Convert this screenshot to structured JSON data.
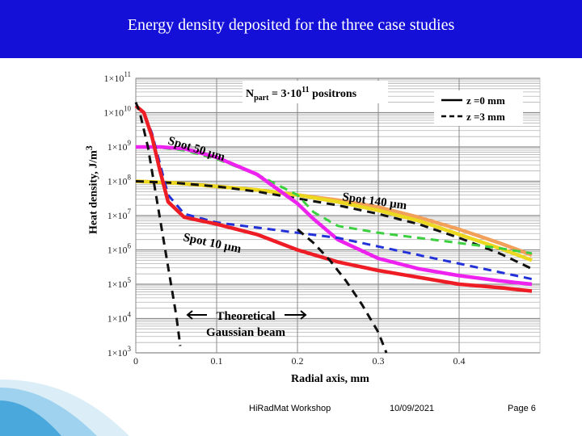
{
  "header": {
    "title": "Energy density deposited for the three case studies"
  },
  "footer": {
    "workshop": "HiRadMat  Workshop",
    "date": "10/09/2021",
    "page": "Page 6"
  },
  "colors": {
    "banner": "#1410d8",
    "orange": "#f2a05a",
    "yellow": "#ecd81e",
    "green": "#3cd040",
    "blue": "#2232d8",
    "magenta": "#ee22ee",
    "red": "#ee1c24",
    "black": "#111111"
  },
  "chart_data": {
    "type": "line",
    "xlabel": "Radial axis, mm",
    "ylabel": "Heat density,  J/m3",
    "ylabel_main": "Heat density,  J/m",
    "ylabel_sup": "3",
    "xlim": [
      0,
      0.5
    ],
    "ylim_log10": [
      3,
      11
    ],
    "log_y": true,
    "x_ticks": [
      "0",
      "0.1",
      "0.2",
      "0.3",
      "0.4"
    ],
    "x_tick_values": [
      0,
      0.1,
      0.2,
      0.3,
      0.4
    ],
    "y_ticks": [
      {
        "base": "1×10",
        "exp": "11",
        "v": 11
      },
      {
        "base": "1×10",
        "exp": "10",
        "v": 10
      },
      {
        "base": "1×10",
        "exp": "9",
        "v": 9
      },
      {
        "base": "1×10",
        "exp": "8",
        "v": 8
      },
      {
        "base": "1×10",
        "exp": "7",
        "v": 7
      },
      {
        "base": "1×10",
        "exp": "6",
        "v": 6
      },
      {
        "base": "1×10",
        "exp": "5",
        "v": 5
      },
      {
        "base": "1×10",
        "exp": "4",
        "v": 4
      },
      {
        "base": "1×10",
        "exp": "3",
        "v": 3
      }
    ],
    "legend": [
      {
        "label": "z =0 mm",
        "dash": false
      },
      {
        "label": "z =3 mm",
        "dash": true
      }
    ],
    "annotations": {
      "npart_pre": "N",
      "npart_sub": "part",
      "npart_mid": " = 3·10",
      "npart_sup": "11",
      "npart_post": " positrons",
      "spot50": "Spot 50 µm",
      "spot140": "Spot 140 µm",
      "spot10": "Spot 10 µm",
      "gauss1": "Theoretical",
      "gauss2": "Gaussian beam"
    },
    "series": [
      {
        "spot": "140 µm",
        "z": "0 mm",
        "color": "orange",
        "points": [
          [
            0,
            8.0
          ],
          [
            0.05,
            7.95
          ],
          [
            0.1,
            7.85
          ],
          [
            0.15,
            7.75
          ],
          [
            0.2,
            7.6
          ],
          [
            0.25,
            7.45
          ],
          [
            0.3,
            7.25
          ],
          [
            0.35,
            6.95
          ],
          [
            0.4,
            6.6
          ],
          [
            0.45,
            6.2
          ],
          [
            0.49,
            5.85
          ]
        ]
      },
      {
        "spot": "140 µm",
        "z": "0 mm",
        "color": "yellow",
        "points": [
          [
            0,
            8.0
          ],
          [
            0.05,
            7.95
          ],
          [
            0.1,
            7.85
          ],
          [
            0.15,
            7.75
          ],
          [
            0.2,
            7.6
          ],
          [
            0.25,
            7.4
          ],
          [
            0.3,
            7.15
          ],
          [
            0.35,
            6.85
          ],
          [
            0.4,
            6.45
          ],
          [
            0.45,
            6.05
          ],
          [
            0.49,
            5.7
          ]
        ]
      },
      {
        "spot": "140 µm",
        "z": "3 mm",
        "color": "black",
        "dash": true,
        "points": [
          [
            0,
            8.0
          ],
          [
            0.05,
            7.95
          ],
          [
            0.1,
            7.85
          ],
          [
            0.15,
            7.7
          ],
          [
            0.2,
            7.5
          ],
          [
            0.25,
            7.3
          ],
          [
            0.3,
            7.05
          ],
          [
            0.35,
            6.75
          ],
          [
            0.4,
            6.35
          ],
          [
            0.45,
            5.9
          ],
          [
            0.49,
            5.45
          ]
        ]
      },
      {
        "spot": "50 µm",
        "z": "3 mm",
        "color": "green",
        "dash": true,
        "points": [
          [
            0,
            9.0
          ],
          [
            0.03,
            8.98
          ],
          [
            0.06,
            8.9
          ],
          [
            0.1,
            8.65
          ],
          [
            0.15,
            8.2
          ],
          [
            0.2,
            7.6
          ],
          [
            0.22,
            7.1
          ],
          [
            0.25,
            6.7
          ],
          [
            0.3,
            6.5
          ],
          [
            0.35,
            6.35
          ],
          [
            0.4,
            6.2
          ],
          [
            0.45,
            6.05
          ],
          [
            0.49,
            5.9
          ]
        ]
      },
      {
        "spot": "50 µm",
        "z": "0 mm",
        "color": "magenta",
        "points": [
          [
            0,
            9.0
          ],
          [
            0.03,
            9.0
          ],
          [
            0.06,
            8.95
          ],
          [
            0.1,
            8.7
          ],
          [
            0.15,
            8.2
          ],
          [
            0.2,
            7.35
          ],
          [
            0.22,
            6.9
          ],
          [
            0.25,
            6.3
          ],
          [
            0.3,
            5.75
          ],
          [
            0.35,
            5.45
          ],
          [
            0.4,
            5.25
          ],
          [
            0.45,
            5.1
          ],
          [
            0.49,
            5.0
          ]
        ]
      },
      {
        "spot": "10 µm",
        "z": "3 mm",
        "color": "blue",
        "dash": true,
        "points": [
          [
            0,
            10.2
          ],
          [
            0.01,
            10.0
          ],
          [
            0.02,
            9.4
          ],
          [
            0.03,
            8.5
          ],
          [
            0.04,
            7.6
          ],
          [
            0.06,
            7.05
          ],
          [
            0.1,
            6.8
          ],
          [
            0.15,
            6.65
          ],
          [
            0.2,
            6.5
          ],
          [
            0.25,
            6.35
          ],
          [
            0.3,
            6.1
          ],
          [
            0.35,
            5.85
          ],
          [
            0.4,
            5.6
          ],
          [
            0.45,
            5.35
          ],
          [
            0.49,
            5.15
          ]
        ]
      },
      {
        "spot": "10 µm",
        "z": "0 mm",
        "color": "red",
        "points": [
          [
            0,
            10.2
          ],
          [
            0.01,
            10.0
          ],
          [
            0.02,
            9.3
          ],
          [
            0.03,
            8.3
          ],
          [
            0.04,
            7.4
          ],
          [
            0.06,
            6.95
          ],
          [
            0.1,
            6.75
          ],
          [
            0.15,
            6.45
          ],
          [
            0.2,
            6.0
          ],
          [
            0.25,
            5.65
          ],
          [
            0.3,
            5.4
          ],
          [
            0.35,
            5.2
          ],
          [
            0.4,
            5.0
          ],
          [
            0.45,
            4.9
          ],
          [
            0.49,
            4.8
          ]
        ]
      },
      {
        "spot": "Theoretical Gaussian",
        "z": "",
        "color": "black",
        "dash": true,
        "points": [
          [
            0,
            10.3
          ],
          [
            0.005,
            10.0
          ],
          [
            0.01,
            9.5
          ],
          [
            0.015,
            9.0
          ],
          [
            0.02,
            8.3
          ],
          [
            0.025,
            7.6
          ],
          [
            0.03,
            6.9
          ],
          [
            0.035,
            6.2
          ],
          [
            0.04,
            5.5
          ],
          [
            0.045,
            4.8
          ],
          [
            0.05,
            4.1
          ],
          [
            0.055,
            3.2
          ]
        ]
      },
      {
        "spot": "Theoretical Gaussian 50",
        "z": "",
        "color": "black",
        "dash": true,
        "points": [
          [
            0.2,
            6.6
          ],
          [
            0.22,
            6.2
          ],
          [
            0.24,
            5.7
          ],
          [
            0.26,
            5.1
          ],
          [
            0.28,
            4.4
          ],
          [
            0.3,
            3.6
          ],
          [
            0.31,
            3.0
          ]
        ]
      }
    ]
  }
}
